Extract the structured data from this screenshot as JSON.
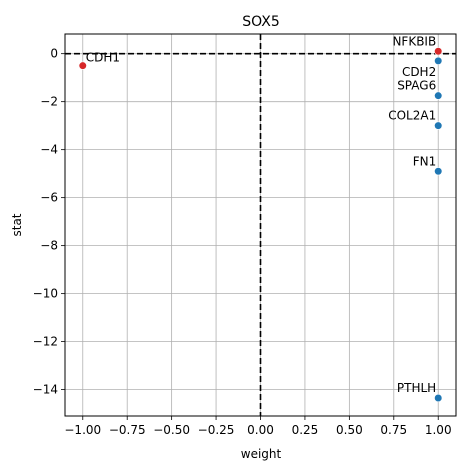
{
  "chart_data": {
    "type": "scatter",
    "title": "SOX5",
    "xlabel": "weight",
    "ylabel": "stat",
    "xlim": [
      -1.1,
      1.1
    ],
    "ylim": [
      -15.1,
      0.82
    ],
    "xticks": [
      -1.0,
      -0.75,
      -0.5,
      -0.25,
      0.0,
      0.25,
      0.5,
      0.75,
      1.0
    ],
    "xtick_labels": [
      "−1.00",
      "−0.75",
      "−0.50",
      "−0.25",
      "0.00",
      "0.25",
      "0.50",
      "0.75",
      "1.00"
    ],
    "yticks": [
      0,
      -2,
      -4,
      -6,
      -8,
      -10,
      -12,
      -14
    ],
    "ytick_labels": [
      "0",
      "−2",
      "−4",
      "−6",
      "−8",
      "−10",
      "−12",
      "−14"
    ],
    "grid": true,
    "reference_lines": {
      "x": 0,
      "y": 0,
      "style": "dashed",
      "color": "#000000"
    },
    "colors": {
      "positive_weight": "#1f77b4",
      "negative_weight": "#d62728"
    },
    "points": [
      {
        "label": "NFKBIB",
        "x": 1.0,
        "y": 0.1,
        "color": "#d62728",
        "label_side": "left-above"
      },
      {
        "label": "CDH2",
        "x": 1.0,
        "y": -0.3,
        "color": "#1f77b4",
        "label_side": "left-below"
      },
      {
        "label": "SPAG6",
        "x": 1.0,
        "y": -1.75,
        "color": "#1f77b4",
        "label_side": "left-above"
      },
      {
        "label": "COL2A1",
        "x": 1.0,
        "y": -3.0,
        "color": "#1f77b4",
        "label_side": "left-above"
      },
      {
        "label": "FN1",
        "x": 1.0,
        "y": -4.9,
        "color": "#1f77b4",
        "label_side": "left-above"
      },
      {
        "label": "PTHLH",
        "x": 1.0,
        "y": -14.35,
        "color": "#1f77b4",
        "label_side": "left-above"
      },
      {
        "label": "CDH1",
        "x": -1.0,
        "y": -0.5,
        "color": "#d62728",
        "label_side": "right-above"
      }
    ]
  }
}
